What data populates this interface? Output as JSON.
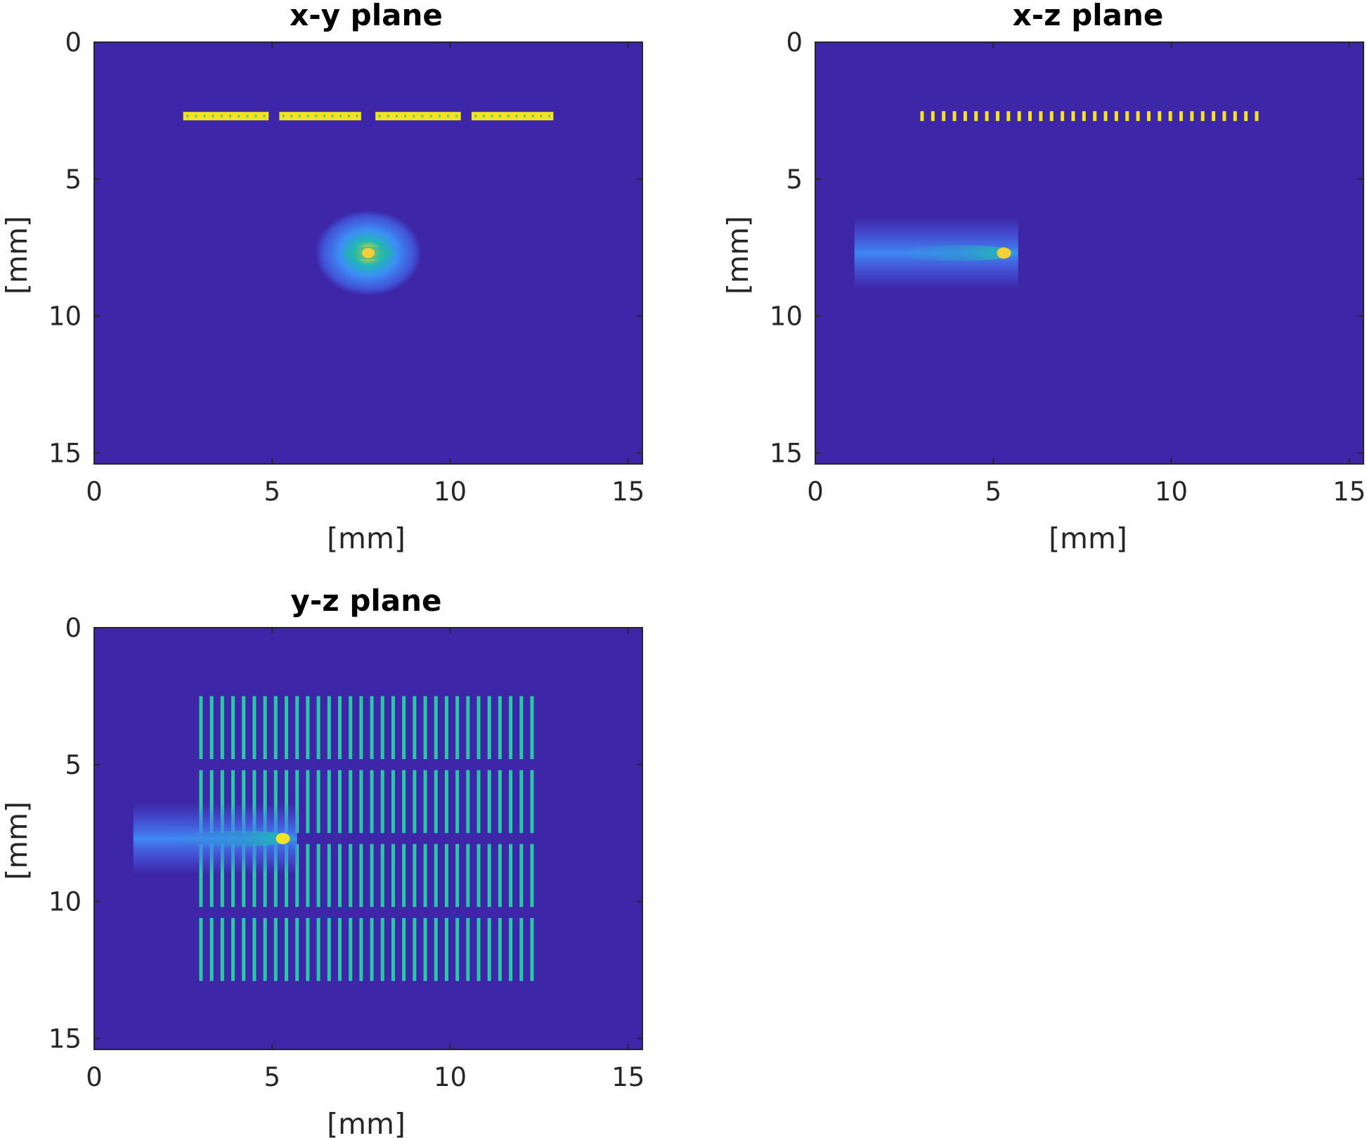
{
  "chart_data": [
    {
      "type": "heatmap",
      "title": "x-y plane",
      "xlabel": "[mm]",
      "ylabel": "[mm]",
      "xlim": [
        0,
        15.4
      ],
      "ylim": [
        15.4,
        0
      ],
      "xticks": [
        "0",
        "5",
        "10",
        "15"
      ],
      "yticks": [
        "0",
        "5",
        "10",
        "15"
      ],
      "background_color": "#3d26a8",
      "features": [
        {
          "kind": "element-row",
          "row_y": 2.7,
          "segments": [
            [
              2.5,
              4.9
            ],
            [
              5.2,
              7.5
            ],
            [
              7.9,
              10.3
            ],
            [
              10.6,
              12.9
            ]
          ],
          "color": "#f2e326"
        },
        {
          "kind": "focal-spot",
          "center": [
            7.7,
            7.7
          ],
          "radius": [
            1.5,
            1.2
          ],
          "peak_color": "#f9cf37"
        }
      ]
    },
    {
      "type": "heatmap",
      "title": "x-z plane",
      "xlabel": "[mm]",
      "ylabel": "[mm]",
      "xlim": [
        0,
        15.4
      ],
      "ylim": [
        15.4,
        0
      ],
      "xticks": [
        "0",
        "5",
        "10",
        "15"
      ],
      "yticks": [
        "0",
        "5",
        "10",
        "15"
      ],
      "background_color": "#3d26a8",
      "features": [
        {
          "kind": "element-dots",
          "row_y": 2.7,
          "x_start": 3.0,
          "x_end": 12.4,
          "count": 32,
          "color": "#f2e326"
        },
        {
          "kind": "beam",
          "x_range": [
            1.1,
            5.7
          ],
          "center_y": 7.7,
          "half_width": 1.3,
          "peak_x": 5.3,
          "peak_color": "#f9cf37"
        }
      ]
    },
    {
      "type": "heatmap",
      "title": "y-z plane",
      "xlabel": "[mm]",
      "ylabel": "[mm]",
      "xlim": [
        0,
        15.4
      ],
      "ylim": [
        15.4,
        0
      ],
      "xticks": [
        "0",
        "5",
        "10",
        "15"
      ],
      "yticks": [
        "0",
        "5",
        "10",
        "15"
      ],
      "background_color": "#3d26a8",
      "features": [
        {
          "kind": "element-columns",
          "x_start": 3.0,
          "x_end": 12.3,
          "count": 32,
          "row_bands": [
            [
              2.5,
              4.8
            ],
            [
              5.2,
              7.5
            ],
            [
              7.9,
              10.2
            ],
            [
              10.6,
              12.9
            ]
          ],
          "color": "#2bc8a8"
        },
        {
          "kind": "beam",
          "x_range": [
            1.1,
            5.7
          ],
          "center_y": 7.7,
          "half_width": 1.3,
          "peak_x": 5.3,
          "peak_color": "#f2e326"
        }
      ]
    }
  ]
}
